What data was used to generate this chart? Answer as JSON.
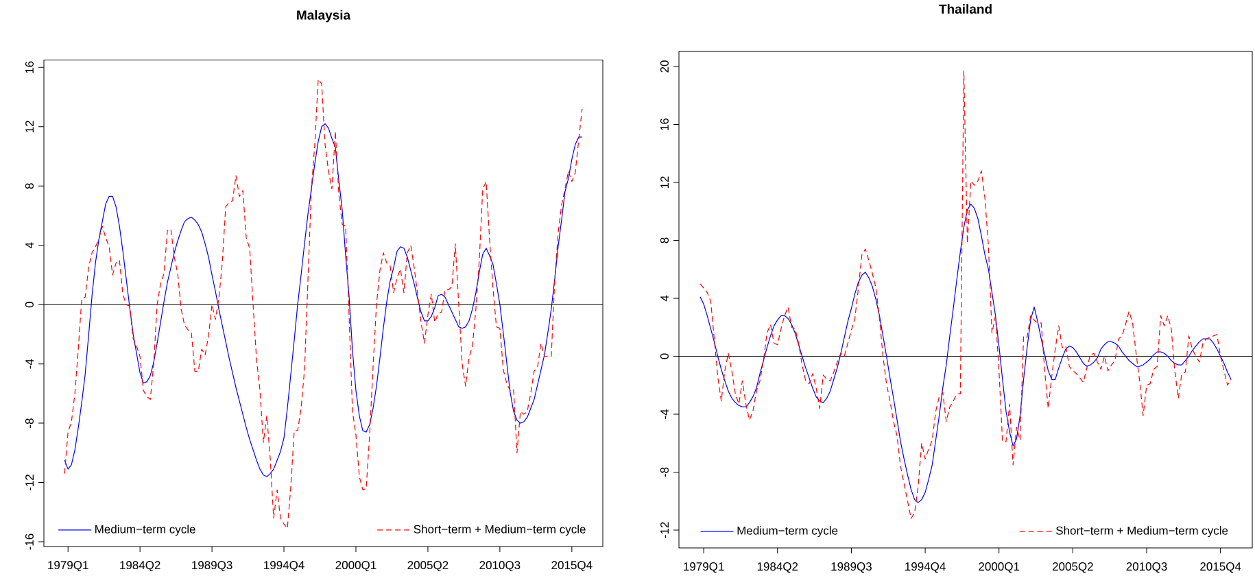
{
  "chart_data": [
    {
      "type": "line",
      "title": "Malaysia",
      "ylim": [
        -16.32,
        16.5
      ],
      "categories": [
        null,
        "1979Q1",
        null,
        null,
        null,
        null,
        null,
        null,
        null,
        null,
        null,
        null,
        null,
        null,
        null,
        null,
        null,
        null,
        null,
        null,
        null,
        null,
        "1984Q2",
        null,
        null,
        null,
        null,
        null,
        null,
        null,
        null,
        null,
        null,
        null,
        null,
        null,
        null,
        null,
        null,
        null,
        null,
        null,
        null,
        "1989Q3",
        null,
        null,
        null,
        null,
        null,
        null,
        null,
        null,
        null,
        null,
        null,
        null,
        null,
        null,
        null,
        null,
        null,
        null,
        null,
        null,
        "1994Q4",
        null,
        null,
        null,
        null,
        null,
        null,
        null,
        null,
        null,
        null,
        null,
        null,
        null,
        null,
        null,
        null,
        null,
        null,
        null,
        null,
        "2000Q1",
        null,
        null,
        null,
        null,
        null,
        null,
        null,
        null,
        null,
        null,
        null,
        null,
        null,
        null,
        null,
        null,
        null,
        null,
        null,
        null,
        "2005Q2",
        null,
        null,
        null,
        null,
        null,
        null,
        null,
        null,
        null,
        null,
        null,
        null,
        null,
        null,
        null,
        null,
        null,
        null,
        null,
        null,
        "2010Q3",
        null,
        null,
        null,
        null,
        null,
        null,
        null,
        null,
        null,
        null,
        null,
        null,
        null,
        null,
        null,
        null,
        null,
        null,
        null,
        null,
        "2015Q4",
        null,
        null,
        null
      ],
      "yticks": [
        -16,
        -12,
        -8,
        -4,
        0,
        4,
        8,
        12,
        16
      ],
      "legend": "bottom",
      "ref_lines": [
        {
          "axis": "y",
          "value": 0,
          "color": "#000000"
        }
      ],
      "series": [
        {
          "name": "Medium−term cycle",
          "color": "#0000ff",
          "line_style": "solid",
          "values": [
            -10.5,
            -11.1,
            -10.8,
            -9.8,
            -8.3,
            -6.6,
            -4.7,
            -2.1,
            0.6,
            2.8,
            4.4,
            5.6,
            6.8,
            7.3,
            7.3,
            6.6,
            5.3,
            3.6,
            1.7,
            -0.2,
            -2.0,
            -3.3,
            -4.6,
            -5.3,
            -5.2,
            -4.8,
            -3.9,
            -2.6,
            -1.2,
            0.2,
            1.5,
            2.5,
            3.5,
            4.3,
            5.0,
            5.6,
            5.8,
            5.9,
            5.7,
            5.4,
            4.9,
            4.1,
            3.2,
            2.0,
            0.9,
            -0.3,
            -1.4,
            -2.5,
            -3.6,
            -4.6,
            -5.6,
            -6.5,
            -7.4,
            -8.3,
            -9.1,
            -9.8,
            -10.5,
            -11.1,
            -11.5,
            -11.6,
            -11.4,
            -11.1,
            -10.5,
            -9.9,
            -9.0,
            -7.0,
            -4.7,
            -2.4,
            0,
            2.0,
            4.1,
            6.1,
            7.8,
            9.5,
            11.0,
            12.0,
            12.2,
            11.9,
            11.2,
            10.6,
            8.4,
            6.4,
            3.3,
            0.6,
            -3.1,
            -5.8,
            -7.5,
            -8.5,
            -8.6,
            -8.1,
            -7.0,
            -5.5,
            -3.6,
            -1.6,
            0.2,
            1.6,
            2.5,
            3.6,
            3.9,
            3.8,
            3.2,
            2.3,
            1.4,
            0.4,
            -0.5,
            -1.1,
            -1.1,
            -0.8,
            -0.2,
            0.6,
            0.7,
            0.5,
            0.0,
            -0.5,
            -1.0,
            -1.5,
            -1.6,
            -1.5,
            -1.1,
            -0.3,
            0.8,
            2.2,
            3.4,
            3.8,
            3.3,
            2.7,
            1.4,
            0.0,
            -1.9,
            -3.9,
            -5.9,
            -7.2,
            -7.8,
            -8.0,
            -7.9,
            -7.6,
            -7.0,
            -6.4,
            -5.4,
            -4.4,
            -3.4,
            -1.9,
            -0.3,
            1.7,
            3.9,
            5.7,
            7.6,
            8.5,
            9.8,
            10.8,
            11.3,
            11.3
          ]
        },
        {
          "name": "Short−term + Medium−term cycle",
          "color": "#ff0000",
          "line_style": "dashed",
          "values": [
            -11.4,
            -8.6,
            -7.9,
            -6.0,
            -3.0,
            0.4,
            0.5,
            2.5,
            3.5,
            3.9,
            4.4,
            5.3,
            4.5,
            3.9,
            2.0,
            2.8,
            3.0,
            0.7,
            0,
            -0.1,
            -2.3,
            -2.8,
            -3.5,
            -5.8,
            -6.2,
            -6.4,
            -4.0,
            0,
            1.4,
            2.1,
            5.0,
            5.1,
            3.2,
            2.1,
            -0.3,
            -1.4,
            -1.7,
            -1.9,
            -4.5,
            -4.5,
            -3.0,
            -3.4,
            -2.1,
            0,
            -1.0,
            0.4,
            2.8,
            6.6,
            6.9,
            7.0,
            8.7,
            7.3,
            7.7,
            4.5,
            3.8,
            0,
            -3.7,
            -5.8,
            -9.3,
            -7.5,
            -10.4,
            -14.4,
            -12.5,
            -14.4,
            -14.8,
            -15.1,
            -12.3,
            -8.5,
            -8.5,
            -7.0,
            -4.4,
            1.6,
            7.8,
            10.8,
            15.2,
            14.9,
            10.8,
            9.0,
            7.8,
            11.7,
            7.5,
            5.4,
            5.3,
            -0.7,
            -7.2,
            -8.8,
            -11.6,
            -12.5,
            -12.4,
            -8.8,
            -4.2,
            0,
            2.3,
            3.5,
            2.8,
            2.6,
            0.8,
            1.8,
            2.4,
            0.8,
            3.5,
            4.0,
            2.5,
            0.7,
            -1.2,
            -2.6,
            -0.7,
            0.7,
            -1.2,
            -0.6,
            -0.5,
            1.0,
            1.0,
            1.2,
            4.1,
            0,
            -4.0,
            -5.5,
            -3.6,
            -2.8,
            -0.3,
            3.0,
            7.8,
            8.3,
            4.4,
            1.1,
            -1.5,
            -1.6,
            -4.4,
            -5.3,
            -5.8,
            -5.7,
            -10.0,
            -7.2,
            -7.4,
            -7.2,
            -6.0,
            -4.5,
            -4.2,
            -2.6,
            -3.5,
            -3.5,
            -3.5,
            1.6,
            4.8,
            6.7,
            7.8,
            9.0,
            8.3,
            8.9,
            11.1,
            13.2
          ]
        }
      ]
    },
    {
      "type": "line",
      "title": "Thailand",
      "ylim": [
        -13.23,
        21.04
      ],
      "categories": [
        null,
        "1979Q1",
        null,
        null,
        null,
        null,
        null,
        null,
        null,
        null,
        null,
        null,
        null,
        null,
        null,
        null,
        null,
        null,
        null,
        null,
        null,
        null,
        "1984Q2",
        null,
        null,
        null,
        null,
        null,
        null,
        null,
        null,
        null,
        null,
        null,
        null,
        null,
        null,
        null,
        null,
        null,
        null,
        null,
        null,
        "1989Q3",
        null,
        null,
        null,
        null,
        null,
        null,
        null,
        null,
        null,
        null,
        null,
        null,
        null,
        null,
        null,
        null,
        null,
        null,
        null,
        null,
        "1994Q4",
        null,
        null,
        null,
        null,
        null,
        null,
        null,
        null,
        null,
        null,
        null,
        null,
        null,
        null,
        null,
        null,
        null,
        null,
        null,
        null,
        "2000Q1",
        null,
        null,
        null,
        null,
        null,
        null,
        null,
        null,
        null,
        null,
        null,
        null,
        null,
        null,
        null,
        null,
        null,
        null,
        null,
        null,
        "2005Q2",
        null,
        null,
        null,
        null,
        null,
        null,
        null,
        null,
        null,
        null,
        null,
        null,
        null,
        null,
        null,
        null,
        null,
        null,
        null,
        null,
        "2010Q3",
        null,
        null,
        null,
        null,
        null,
        null,
        null,
        null,
        null,
        null,
        null,
        null,
        null,
        null,
        null,
        null,
        null,
        null,
        null,
        null,
        "2015Q4",
        null,
        null,
        null
      ],
      "yticks": [
        -12,
        -8,
        -4,
        0,
        4,
        8,
        12,
        16,
        20
      ],
      "legend": "bottom",
      "ref_lines": [
        {
          "axis": "y",
          "value": 0,
          "color": "#000000"
        }
      ],
      "series": [
        {
          "name": "Medium−term cycle",
          "color": "#0000ff",
          "line_style": "solid",
          "values": [
            4.1,
            3.6,
            2.8,
            1.9,
            1.0,
            0.0,
            -0.9,
            -1.7,
            -2.4,
            -2.9,
            -3.2,
            -3.4,
            -3.5,
            -3.5,
            -3.2,
            -2.8,
            -2.2,
            -1.2,
            -0.3,
            0.6,
            1.4,
            2.1,
            2.5,
            2.8,
            2.8,
            2.6,
            2.2,
            1.6,
            0.8,
            0.0,
            -0.8,
            -1.5,
            -2.2,
            -2.8,
            -3.1,
            -3.2,
            -2.9,
            -2.4,
            -1.6,
            -0.8,
            0.2,
            1.3,
            2.4,
            3.3,
            4.3,
            5.1,
            5.6,
            5.8,
            5.4,
            4.8,
            3.9,
            2.8,
            1.4,
            0,
            -1.5,
            -2.9,
            -4.4,
            -5.9,
            -7.1,
            -8.2,
            -9.2,
            -9.9,
            -10.1,
            -9.9,
            -9.4,
            -8.5,
            -7.5,
            -5.8,
            -4.1,
            -2.2,
            -0.6,
            1.4,
            3.3,
            5.3,
            7.2,
            8.9,
            10.1,
            10.5,
            10.2,
            9.5,
            8.3,
            7.0,
            6.0,
            4.4,
            2.8,
            0.7,
            -1.6,
            -3.8,
            -5.2,
            -6.2,
            -5.7,
            -4.1,
            -1.6,
            0.6,
            2.5,
            3.4,
            2.4,
            1.2,
            0.1,
            -1.0,
            -1.6,
            -1.6,
            -0.8,
            -0.1,
            0.5,
            0.7,
            0.6,
            0.3,
            -0.1,
            -0.5,
            -0.7,
            -0.6,
            -0.4,
            -0.1,
            0.5,
            0.8,
            1.0,
            1.0,
            0.9,
            0.7,
            0.3,
            0,
            -0.3,
            -0.5,
            -0.7,
            -0.7,
            -0.6,
            -0.4,
            -0.2,
            0.1,
            0.3,
            0.3,
            0.2,
            0.0,
            -0.3,
            -0.5,
            -0.6,
            -0.6,
            -0.3,
            0.0,
            0.4,
            0.7,
            1.0,
            1.2,
            1.2,
            1.2,
            0.9,
            0.5,
            0.0,
            -0.5,
            -1.1,
            -1.6
          ]
        },
        {
          "name": "Short−term + Medium−term cycle",
          "color": "#ff0000",
          "line_style": "dashed",
          "values": [
            5.0,
            4.7,
            4.4,
            3.8,
            1.2,
            -1.4,
            -3.1,
            -1.0,
            0.2,
            -1.0,
            -2.6,
            -3.3,
            -1.7,
            -3.3,
            -4.4,
            -3.8,
            -2.4,
            -1.7,
            -0.3,
            1.6,
            2.2,
            0.9,
            0.8,
            1.9,
            2.8,
            3.4,
            2.0,
            1.9,
            0.9,
            -0.6,
            -1.7,
            -1.9,
            -1.2,
            -2.2,
            -3.6,
            -1.3,
            -1.6,
            -1.7,
            -1.1,
            -0.4,
            0.2,
            0,
            0.9,
            1.8,
            2.6,
            4.7,
            7.0,
            7.4,
            6.6,
            5.7,
            4.7,
            2.6,
            0,
            -1.9,
            -3.1,
            -4.5,
            -5.5,
            -7.6,
            -8.8,
            -10.0,
            -11.2,
            -10.8,
            -9.0,
            -6.0,
            -7.1,
            -6.4,
            -5.8,
            -3.8,
            -2.8,
            -2.5,
            -4.5,
            -3.5,
            -3.1,
            -2.6,
            -2.6,
            19.7,
            7.8,
            12.1,
            11.8,
            12.1,
            12.8,
            10.9,
            7.6,
            1.6,
            2.8,
            -1.0,
            -5.9,
            -5.9,
            -3.3,
            -7.5,
            -4.9,
            -5.8,
            1.4,
            1.3,
            2.8,
            2.5,
            2.3,
            2.3,
            -1.0,
            -3.6,
            -1.4,
            0.5,
            2.1,
            0.6,
            0.7,
            -0.7,
            -1.0,
            -1.2,
            -1.5,
            -1.8,
            -0.8,
            0.1,
            0.2,
            -0.4,
            -0.9,
            0,
            -1.0,
            -0.6,
            -0.3,
            1.2,
            1.4,
            2.2,
            3.1,
            2.3,
            0.2,
            -1.7,
            -4.1,
            -2.0,
            -1.9,
            -0.9,
            -0.7,
            2.8,
            2.1,
            2.8,
            1.9,
            -1.0,
            -2.9,
            -1.2,
            -1.1,
            1.4,
            0.5,
            0.0,
            -0.4,
            0.9,
            1.2,
            1.3,
            1.4,
            1.5,
            0.0,
            -1.0,
            -2.0,
            -1.6
          ]
        }
      ]
    }
  ]
}
